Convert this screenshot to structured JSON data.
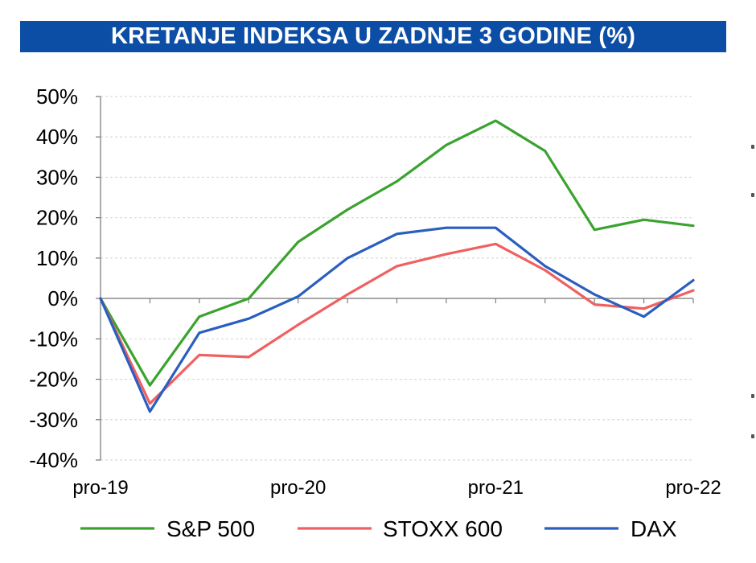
{
  "title": "KRETANJE INDEKSA U ZADNJE 3 GODINE (%)",
  "colors": {
    "title_background": "#0c4ea6",
    "title_text": "#ffffff",
    "grid": "#d9d9d9",
    "zero_line": "#808080",
    "axis": "#808080"
  },
  "chart_data": {
    "type": "line",
    "title": "KRETANJE INDEKSA U ZADNJE 3 GODINE (%)",
    "xlabel": "",
    "ylabel": "",
    "x": [
      0,
      1,
      2,
      3,
      4,
      5,
      6,
      7,
      8,
      9,
      10,
      11,
      12
    ],
    "x_tick_labels": [
      {
        "x": 0,
        "label": "pro-19"
      },
      {
        "x": 4,
        "label": "pro-20"
      },
      {
        "x": 8,
        "label": "pro-21"
      },
      {
        "x": 12,
        "label": "pro-22"
      }
    ],
    "ylim": [
      -40,
      50
    ],
    "y_ticks": [
      50,
      40,
      30,
      20,
      10,
      0,
      -10,
      -20,
      -30,
      -40
    ],
    "y_tick_format": "percent",
    "grid": true,
    "legend_position": "bottom",
    "series": [
      {
        "name": "S&P 500",
        "color": "#3aa32e",
        "values": [
          0,
          -21.5,
          -4.5,
          0,
          14,
          22,
          29,
          38,
          44,
          36.5,
          17,
          19.5,
          18
        ]
      },
      {
        "name": "STOXX 600",
        "color": "#f06060",
        "values": [
          0,
          -26,
          -14,
          -14.5,
          -6.5,
          1,
          8,
          11,
          13.5,
          7,
          -1.5,
          -2.5,
          2
        ]
      },
      {
        "name": "DAX",
        "color": "#2a5ebf",
        "values": [
          0,
          -28,
          -8.5,
          -5,
          0.5,
          10,
          16,
          17.5,
          17.5,
          8,
          1,
          -4.5,
          4.5
        ]
      }
    ]
  }
}
